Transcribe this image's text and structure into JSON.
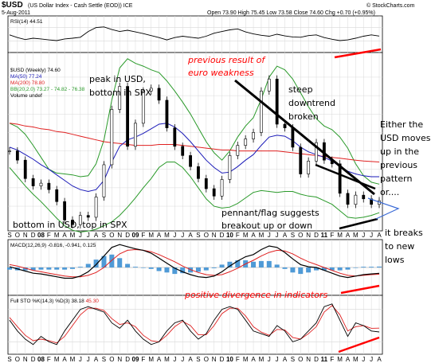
{
  "header": {
    "symbol": "$USD",
    "name": "(US Dollar Index - Cash Settle (EOD)) ICE",
    "date": "5-Aug-2011",
    "quote": "Open 73.90  High 75.45  Low 73.58  Close 74.60  Chg +0.70 (+0.95%)",
    "watermark": "© StockCharts.com"
  },
  "legend": {
    "price": "$USD (Weekly) 74.60",
    "ma50": "MA(50) 77.24",
    "ma200": "MA(200) 78.80",
    "bb": "BB(20,2.0) 73.27 - 74.82 - 76.38",
    "volume": "Volume undef",
    "rsi": "RSI(14) 44.51",
    "macd_label": "MACD(12,26,9)",
    "macd_vals": "-0.816, -0.941, 0.125",
    "sto_label": "Full STO %K(14,3) %D(3)",
    "sto_k": "38.18",
    "sto_d": "45.30"
  },
  "annotations": {
    "prev1": "previous result of",
    "prev2": "euro weakness",
    "steep1": "steep",
    "steep2": "downtrend",
    "steep3": "broken",
    "peak1": "peak in USD,",
    "peak2": "bottom in SPX",
    "bottom": "bottom in USD, top in SPX",
    "pennant1": "pennant/flag suggests",
    "pennant2": "breakout up or down",
    "either1": "Either the",
    "either2": "USD moves",
    "either3": "up in the",
    "either4": "previous",
    "either5": "pattern",
    "either6": "or....",
    "breaks1": "it breaks",
    "breaks2": "to new",
    "breaks3": "lows",
    "positive": "positive divergence in indicators"
  },
  "colors": {
    "price": "#000000",
    "ma50": "#1a1ab8",
    "ma200": "#e02020",
    "bb": "#2a9a2a",
    "annotation_red": "#ff0000",
    "macd_hist": "#4f9ad6",
    "grid": "#d8d8d8"
  },
  "chart_data": {
    "type": "line",
    "title": "$USD (US Dollar Index - Cash Settle (EOD)) ICE",
    "x_tick_labels": [
      "S",
      "O",
      "N",
      "D",
      "08",
      "F",
      "M",
      "A",
      "M",
      "J",
      "J",
      "A",
      "S",
      "O",
      "N",
      "D",
      "09",
      "F",
      "M",
      "A",
      "M",
      "J",
      "J",
      "A",
      "S",
      "O",
      "N",
      "D",
      "10",
      "F",
      "M",
      "A",
      "M",
      "J",
      "J",
      "A",
      "S",
      "O",
      "N",
      "D",
      "11",
      "F",
      "M",
      "A",
      "M",
      "J",
      "J",
      "A"
    ],
    "y_ticks": [
      74,
      76,
      78,
      80,
      82,
      84,
      86,
      88
    ],
    "ylim": [
      71.5,
      90.5
    ],
    "series": [
      {
        "name": "$USD (Weekly)",
        "values": [
          80.0,
          79.0,
          77.0,
          76.2,
          76.5,
          75.8,
          74.5,
          72.5,
          72.0,
          73.0,
          72.8,
          75.0,
          78.5,
          84.5,
          87.0,
          80.5,
          83.0,
          86.5,
          86.8,
          85.5,
          82.5,
          80.5,
          79.5,
          78.3,
          77.0,
          75.9,
          75.1,
          76.9,
          79.5,
          80.6,
          81.3,
          82.0,
          86.5,
          87.8,
          82.9,
          82.5,
          80.4,
          77.5,
          78.9,
          80.9,
          79.0,
          78.6,
          75.4,
          74.2,
          75.2,
          74.8,
          74.2,
          74.6
        ]
      },
      {
        "name": "MA(50)",
        "values": [
          80.4,
          80.1,
          79.6,
          79.1,
          78.5,
          78.0,
          77.4,
          76.8,
          76.2,
          75.8,
          75.6,
          75.8,
          76.8,
          78.8,
          80.5,
          81.2,
          81.5,
          81.9,
          82.4,
          82.9,
          83.0,
          82.6,
          81.9,
          81.0,
          80.0,
          79.0,
          78.2,
          77.6,
          77.7,
          78.3,
          79.0,
          79.6,
          80.6,
          81.5,
          81.7,
          81.6,
          81.1,
          80.4,
          79.9,
          79.6,
          79.3,
          78.9,
          78.3,
          77.8,
          77.5,
          77.3,
          77.2,
          77.2
        ]
      },
      {
        "name": "MA(200)",
        "values": [
          83.0,
          82.9,
          82.7,
          82.6,
          82.4,
          82.3,
          82.1,
          82.0,
          81.8,
          81.6,
          81.4,
          81.2,
          81.0,
          80.9,
          80.8,
          80.7,
          80.6,
          80.6,
          80.6,
          80.7,
          80.7,
          80.7,
          80.6,
          80.5,
          80.4,
          80.3,
          80.2,
          80.1,
          80.1,
          80.0,
          80.0,
          80.0,
          80.0,
          80.0,
          80.0,
          79.9,
          79.8,
          79.7,
          79.6,
          79.5,
          79.4,
          79.3,
          79.2,
          79.1,
          79.0,
          78.9,
          78.85,
          78.8
        ]
      },
      {
        "name": "BB(20,2.0) upper",
        "values": [
          83.0,
          82.6,
          81.8,
          80.6,
          79.3,
          78.0,
          77.6,
          77.5,
          77.4,
          77.2,
          77.3,
          78.6,
          81.2,
          85.5,
          89.0,
          90.0,
          89.5,
          89.2,
          88.8,
          88.5,
          87.6,
          86.5,
          85.3,
          84.0,
          82.5,
          81.0,
          79.8,
          79.0,
          80.0,
          81.5,
          82.7,
          83.6,
          85.6,
          88.0,
          89.2,
          88.8,
          87.8,
          86.3,
          84.8,
          83.5,
          82.7,
          82.3,
          81.5,
          80.3,
          78.6,
          77.3,
          76.6,
          76.4
        ]
      },
      {
        "name": "BB(20,2.0) lower",
        "values": [
          78.2,
          77.2,
          76.2,
          75.3,
          74.5,
          73.6,
          72.7,
          71.9,
          71.4,
          71.2,
          71.3,
          71.5,
          71.9,
          72.3,
          73.0,
          73.9,
          74.9,
          76.0,
          77.0,
          78.2,
          78.8,
          78.8,
          78.2,
          77.2,
          76.0,
          74.8,
          74.0,
          73.8,
          73.9,
          74.3,
          74.9,
          75.5,
          75.7,
          75.6,
          75.5,
          75.6,
          75.6,
          75.3,
          75.1,
          75.0,
          74.6,
          74.2,
          73.5,
          72.8,
          72.7,
          72.8,
          73.0,
          73.3
        ]
      }
    ],
    "indicators": {
      "rsi": [
        48,
        40,
        34,
        38,
        36,
        33,
        31,
        36,
        38,
        41,
        58,
        70,
        72,
        64,
        58,
        62,
        57,
        52,
        46,
        40,
        33,
        40,
        44,
        41,
        38,
        44,
        53,
        58,
        63,
        66,
        57,
        51,
        47,
        44,
        50,
        45,
        42,
        41,
        46,
        48,
        40,
        35,
        31,
        33,
        38,
        44,
        48,
        44.51
      ],
      "macd": [
        0.1,
        -0.2,
        -0.5,
        -0.8,
        -0.9,
        -1.1,
        -1.3,
        -1.5,
        -1.5,
        -1.2,
        -0.6,
        0.4,
        1.6,
        2.8,
        3.2,
        2.9,
        2.6,
        2.4,
        2.0,
        1.3,
        0.6,
        -0.1,
        -0.6,
        -1.0,
        -1.3,
        -1.4,
        -1.2,
        -0.6,
        0.2,
        0.9,
        1.5,
        1.8,
        2.5,
        3.0,
        2.8,
        2.1,
        1.2,
        0.4,
        0.1,
        0.0,
        -0.4,
        -0.8,
        -1.2,
        -1.4,
        -1.2,
        -1.0,
        -0.9,
        -0.816
      ],
      "macd_signal": [
        0.4,
        0.2,
        -0.1,
        -0.4,
        -0.6,
        -0.8,
        -1.0,
        -1.2,
        -1.3,
        -1.3,
        -1.1,
        -0.7,
        0.0,
        1.0,
        1.9,
        2.4,
        2.5,
        2.4,
        2.2,
        1.8,
        1.3,
        0.8,
        0.2,
        -0.3,
        -0.7,
        -1.0,
        -1.1,
        -1.0,
        -0.6,
        -0.1,
        0.5,
        1.0,
        1.6,
        2.1,
        2.4,
        2.3,
        1.9,
        1.3,
        0.8,
        0.4,
        0.0,
        -0.4,
        -0.8,
        -1.1,
        -1.2,
        -1.1,
        -1.0,
        -0.941
      ],
      "sto_k": [
        60,
        40,
        25,
        15,
        30,
        20,
        15,
        40,
        60,
        80,
        85,
        80,
        75,
        55,
        45,
        60,
        40,
        25,
        15,
        20,
        40,
        55,
        60,
        40,
        25,
        35,
        60,
        80,
        85,
        80,
        60,
        40,
        35,
        30,
        50,
        40,
        20,
        25,
        40,
        55,
        85,
        90,
        60,
        30,
        55,
        50,
        40,
        38.18
      ],
      "sto_d": [
        65,
        48,
        32,
        22,
        25,
        22,
        18,
        30,
        50,
        70,
        82,
        82,
        78,
        63,
        52,
        55,
        48,
        32,
        22,
        20,
        32,
        48,
        58,
        50,
        33,
        33,
        50,
        72,
        82,
        82,
        68,
        48,
        38,
        32,
        43,
        42,
        28,
        25,
        35,
        48,
        75,
        87,
        70,
        40,
        48,
        50,
        45,
        45.3
      ]
    }
  }
}
